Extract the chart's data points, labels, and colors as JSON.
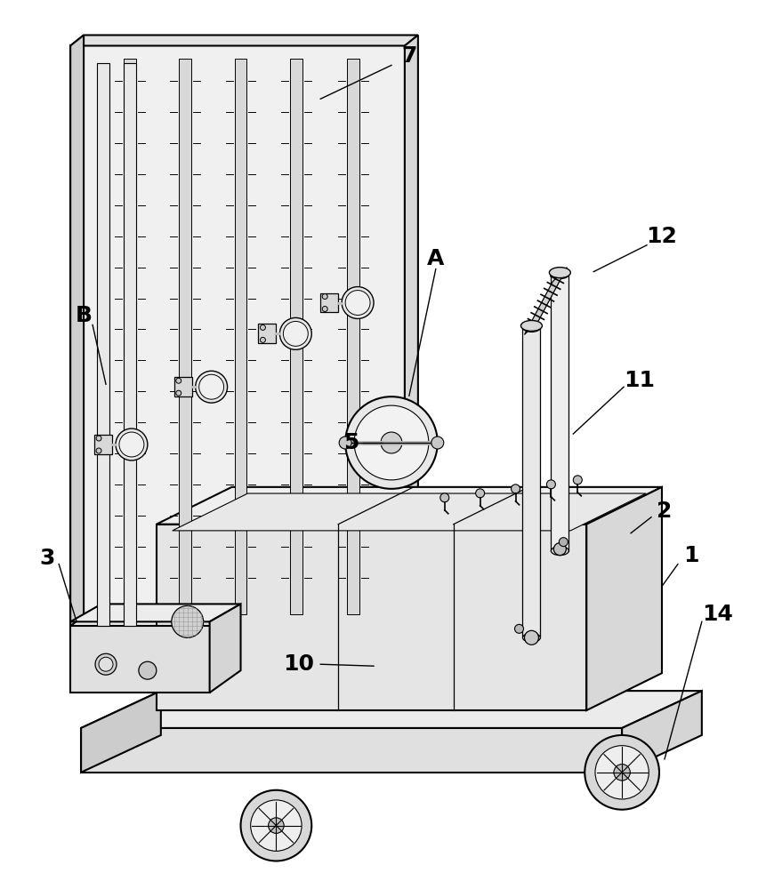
{
  "bg_color": "#ffffff",
  "lc": "#000000",
  "fill_white": "#ffffff",
  "fill_light": "#f0f0f0",
  "fill_mid": "#e0e0e0",
  "fill_dark": "#c8c8c8",
  "fill_darker": "#b0b0b0",
  "figsize": [
    8.62,
    10.0
  ],
  "dpi": 100,
  "labels": {
    "7": [
      460,
      62,
      370,
      108
    ],
    "B": [
      93,
      358,
      120,
      410
    ],
    "A": [
      490,
      295,
      490,
      395
    ],
    "5": [
      395,
      500,
      460,
      490
    ],
    "3": [
      52,
      630,
      82,
      685
    ],
    "10": [
      340,
      750,
      430,
      750
    ],
    "11": [
      720,
      430,
      650,
      470
    ],
    "12": [
      745,
      268,
      680,
      298
    ],
    "2": [
      745,
      578,
      720,
      598
    ],
    "1": [
      775,
      628,
      755,
      655
    ],
    "14": [
      808,
      695,
      760,
      780
    ]
  }
}
